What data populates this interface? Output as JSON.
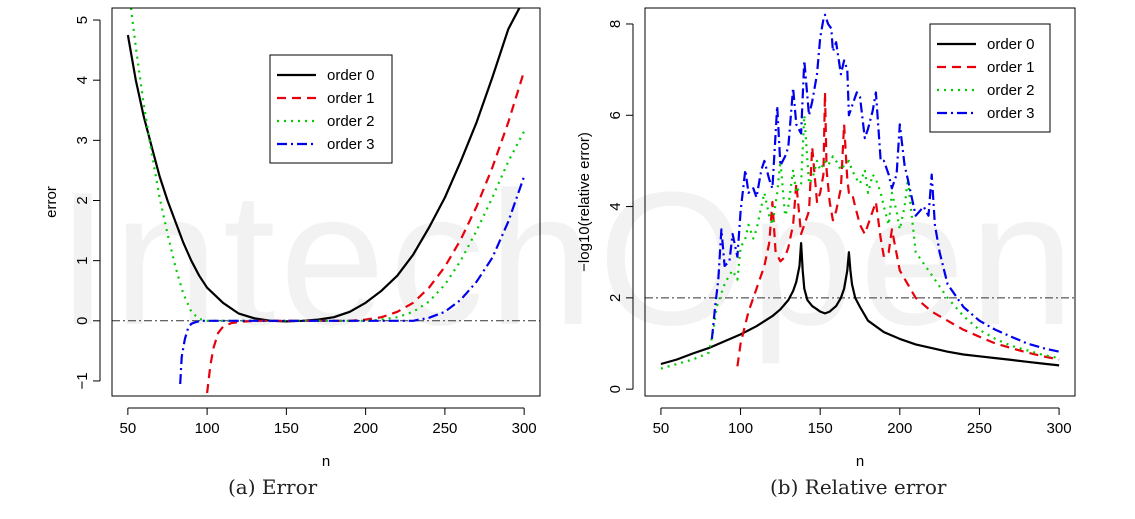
{
  "watermark": "IntechOpen",
  "chart_data": [
    {
      "type": "line",
      "caption": "(a)  Error",
      "xlabel": "n",
      "ylabel": "error",
      "xlim": [
        40,
        310
      ],
      "ylim": [
        -1.25,
        5.2
      ],
      "xticks": [
        50,
        100,
        150,
        200,
        250,
        300
      ],
      "yticks": [
        -1,
        0,
        1,
        2,
        3,
        4,
        5
      ],
      "grid": false,
      "legend": "top-center",
      "reference_line": {
        "y": 0,
        "style": "dash-dot"
      },
      "series": [
        {
          "name": "order 0",
          "color": "#000000",
          "dash": "solid",
          "x": [
            50,
            55,
            60,
            65,
            70,
            75,
            80,
            85,
            90,
            95,
            100,
            110,
            120,
            130,
            140,
            150,
            160,
            170,
            180,
            190,
            200,
            210,
            220,
            230,
            240,
            250,
            260,
            270,
            280,
            290,
            298
          ],
          "y": [
            4.75,
            4.0,
            3.4,
            2.9,
            2.4,
            2.0,
            1.65,
            1.3,
            1.0,
            0.75,
            0.55,
            0.3,
            0.12,
            0.04,
            0.0,
            -0.01,
            0.0,
            0.02,
            0.06,
            0.15,
            0.3,
            0.5,
            0.75,
            1.1,
            1.55,
            2.05,
            2.65,
            3.3,
            4.05,
            4.85,
            5.25
          ]
        },
        {
          "name": "order 1",
          "color": "#e8000b",
          "dash": "dashed",
          "x": [
            100,
            102,
            104,
            107,
            110,
            115,
            120,
            130,
            140,
            150,
            160,
            170,
            180,
            190,
            200,
            210,
            220,
            230,
            240,
            250,
            260,
            270,
            280,
            290,
            300
          ],
          "y": [
            -1.2,
            -0.75,
            -0.45,
            -0.2,
            -0.1,
            -0.04,
            -0.02,
            0.0,
            0.0,
            0.0,
            0.0,
            0.0,
            0.0,
            0.0,
            0.02,
            0.06,
            0.15,
            0.3,
            0.55,
            0.9,
            1.35,
            1.9,
            2.55,
            3.3,
            4.15
          ]
        },
        {
          "name": "order 2",
          "color": "#00cc00",
          "dash": "dotted",
          "x": [
            52,
            55,
            60,
            65,
            70,
            75,
            80,
            85,
            90,
            95,
            100,
            110,
            120,
            150,
            180,
            200,
            210,
            220,
            230,
            240,
            250,
            260,
            270,
            280,
            290,
            300
          ],
          "y": [
            5.2,
            4.55,
            3.6,
            2.8,
            2.05,
            1.45,
            0.9,
            0.45,
            0.15,
            0.03,
            0.0,
            0.0,
            0.0,
            0.0,
            0.0,
            0.0,
            0.02,
            0.06,
            0.15,
            0.32,
            0.6,
            1.0,
            1.5,
            2.05,
            2.65,
            3.15
          ]
        },
        {
          "name": "order 3",
          "color": "#0000ee",
          "dash": "dash-dot",
          "x": [
            83,
            84,
            86,
            88,
            90,
            93,
            96,
            100,
            110,
            150,
            200,
            230,
            240,
            250,
            260,
            270,
            280,
            290,
            300
          ],
          "y": [
            -1.05,
            -0.6,
            -0.3,
            -0.12,
            -0.05,
            -0.02,
            0.0,
            0.0,
            0.0,
            0.0,
            0.0,
            0.0,
            0.05,
            0.15,
            0.35,
            0.65,
            1.05,
            1.65,
            2.4
          ]
        }
      ]
    },
    {
      "type": "line",
      "caption": "(b)  Relative error",
      "xlabel": "n",
      "ylabel": "−log10(relative error)",
      "xlim": [
        40,
        310
      ],
      "ylim": [
        -0.15,
        8.35
      ],
      "xticks": [
        50,
        100,
        150,
        200,
        250,
        300
      ],
      "yticks": [
        0,
        2,
        4,
        6,
        8
      ],
      "grid": false,
      "legend": "top-right",
      "reference_line": {
        "y": 2,
        "style": "dash-dot"
      },
      "series": [
        {
          "name": "order 0",
          "color": "#000000",
          "dash": "solid",
          "x": [
            50,
            60,
            70,
            80,
            90,
            100,
            110,
            120,
            125,
            130,
            133,
            135,
            137,
            138,
            139,
            140,
            142,
            145,
            148,
            150,
            153,
            156,
            160,
            163,
            165,
            167,
            168,
            169,
            170,
            172,
            175,
            180,
            190,
            200,
            210,
            220,
            230,
            240,
            250,
            260,
            270,
            280,
            290,
            300
          ],
          "y": [
            0.55,
            0.65,
            0.78,
            0.9,
            1.05,
            1.2,
            1.38,
            1.6,
            1.75,
            1.95,
            2.15,
            2.35,
            2.7,
            3.2,
            2.6,
            2.2,
            1.95,
            1.82,
            1.75,
            1.7,
            1.66,
            1.7,
            1.82,
            2.0,
            2.2,
            2.6,
            3.0,
            2.6,
            2.3,
            2.0,
            1.8,
            1.5,
            1.25,
            1.1,
            0.98,
            0.9,
            0.82,
            0.76,
            0.72,
            0.68,
            0.64,
            0.6,
            0.56,
            0.52
          ]
        },
        {
          "name": "order 1",
          "color": "#e8000b",
          "dash": "dashed",
          "x": [
            98,
            100,
            105,
            110,
            115,
            118,
            120,
            122,
            125,
            128,
            130,
            133,
            135,
            138,
            140,
            143,
            145,
            148,
            150,
            152,
            153,
            154,
            156,
            158,
            160,
            163,
            165,
            167,
            168,
            170,
            172,
            175,
            178,
            180,
            183,
            185,
            188,
            190,
            193,
            195,
            200,
            210,
            220,
            230,
            240,
            250,
            260,
            270,
            280,
            290,
            300
          ],
          "y": [
            0.5,
            1.0,
            1.7,
            2.2,
            2.7,
            3.2,
            4.1,
            3.0,
            2.8,
            2.9,
            3.1,
            3.6,
            4.5,
            3.4,
            3.6,
            3.9,
            5.3,
            4.1,
            4.3,
            4.7,
            6.5,
            4.8,
            4.1,
            3.7,
            3.9,
            4.4,
            5.8,
            4.6,
            4.3,
            4.3,
            4.0,
            3.6,
            3.4,
            3.6,
            3.9,
            4.1,
            3.3,
            2.9,
            3.0,
            3.5,
            2.6,
            2.0,
            1.7,
            1.5,
            1.3,
            1.15,
            1.0,
            0.9,
            0.8,
            0.72,
            0.65
          ]
        },
        {
          "name": "order 2",
          "color": "#00cc00",
          "dash": "dotted",
          "x": [
            50,
            60,
            70,
            75,
            80,
            83,
            85,
            88,
            90,
            93,
            95,
            98,
            100,
            103,
            105,
            108,
            110,
            113,
            115,
            118,
            120,
            123,
            125,
            128,
            130,
            133,
            135,
            138,
            140,
            143,
            145,
            148,
            150,
            153,
            155,
            158,
            160,
            163,
            165,
            168,
            170,
            173,
            175,
            178,
            180,
            183,
            185,
            188,
            190,
            193,
            195,
            198,
            200,
            203,
            205,
            210,
            220,
            230,
            240,
            250,
            260,
            270,
            280,
            290,
            300
          ],
          "y": [
            0.45,
            0.55,
            0.65,
            0.72,
            0.8,
            1.3,
            1.8,
            2.1,
            2.3,
            2.5,
            2.6,
            2.4,
            3.1,
            3.3,
            3.6,
            3.3,
            3.5,
            4.0,
            4.3,
            3.8,
            3.6,
            4.3,
            5.0,
            3.8,
            4.0,
            4.8,
            4.3,
            4.5,
            6.0,
            4.5,
            4.6,
            5.0,
            4.8,
            5.0,
            4.9,
            5.1,
            5.0,
            4.8,
            4.9,
            5.0,
            4.8,
            4.6,
            4.5,
            4.8,
            4.3,
            4.7,
            4.6,
            4.3,
            4.0,
            3.6,
            4.3,
            3.9,
            3.5,
            4.0,
            4.6,
            3.0,
            2.5,
            2.0,
            1.6,
            1.3,
            1.1,
            0.95,
            0.85,
            0.75,
            0.68
          ]
        },
        {
          "name": "order 3",
          "color": "#0000ee",
          "dash": "dash-dot",
          "x": [
            82,
            84,
            86,
            88,
            90,
            93,
            95,
            98,
            100,
            103,
            105,
            108,
            110,
            113,
            115,
            118,
            120,
            123,
            125,
            128,
            130,
            133,
            135,
            138,
            140,
            143,
            145,
            148,
            150,
            152,
            153,
            155,
            157,
            158,
            160,
            163,
            165,
            167,
            168,
            170,
            173,
            175,
            178,
            180,
            183,
            185,
            188,
            190,
            193,
            195,
            198,
            200,
            203,
            205,
            210,
            215,
            218,
            220,
            222,
            225,
            230,
            240,
            250,
            260,
            270,
            280,
            290,
            300
          ],
          "y": [
            1.1,
            1.8,
            2.4,
            3.5,
            2.7,
            2.8,
            3.4,
            2.9,
            3.9,
            4.8,
            4.3,
            4.4,
            4.2,
            4.8,
            5.0,
            4.6,
            4.4,
            6.2,
            4.9,
            5.1,
            5.3,
            6.6,
            5.8,
            5.6,
            7.2,
            6.0,
            6.3,
            6.9,
            7.7,
            8.1,
            8.2,
            8.0,
            7.9,
            7.4,
            7.6,
            6.9,
            7.2,
            7.0,
            6.0,
            6.2,
            6.5,
            6.4,
            5.5,
            5.7,
            6.1,
            6.5,
            5.0,
            5.0,
            4.7,
            4.4,
            4.7,
            5.8,
            4.9,
            4.6,
            3.8,
            4.0,
            3.8,
            4.7,
            3.6,
            3.0,
            2.3,
            1.8,
            1.5,
            1.3,
            1.15,
            1.0,
            0.9,
            0.82
          ]
        }
      ]
    }
  ]
}
